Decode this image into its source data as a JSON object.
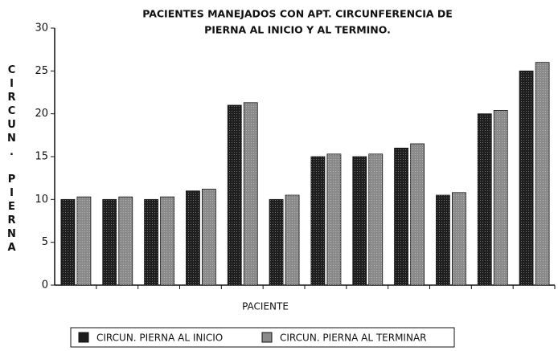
{
  "chart_data": {
    "type": "bar",
    "title": [
      "PACIENTES MANEJADOS CON APT. CIRCUNFERENCIA DE",
      "PIERNA  AL INICIO Y AL TERMINO."
    ],
    "x_label": "PACIENTE",
    "y_label": "CIRCUN. PIERNA",
    "categories": [
      null,
      null,
      null,
      null,
      null,
      null,
      null,
      null,
      null,
      null,
      null,
      null
    ],
    "series": [
      {
        "name": "CIRCUN. PIERNA AL INICIO",
        "color": "#1e1e1e",
        "values": [
          10,
          10,
          10,
          11,
          21,
          10,
          15,
          15,
          16,
          10.5,
          20,
          25
        ]
      },
      {
        "name": "CIRCUN. PIERNA AL TERMINAR",
        "color": "#8a8a8a",
        "values": [
          10.3,
          10.3,
          10.3,
          11.2,
          21.3,
          10.5,
          15.3,
          15.3,
          16.5,
          10.8,
          20.4,
          26
        ]
      }
    ],
    "ylim": [
      0,
      30
    ],
    "yticks": [
      0,
      5,
      10,
      15,
      20,
      25,
      30
    ],
    "grid": false
  }
}
